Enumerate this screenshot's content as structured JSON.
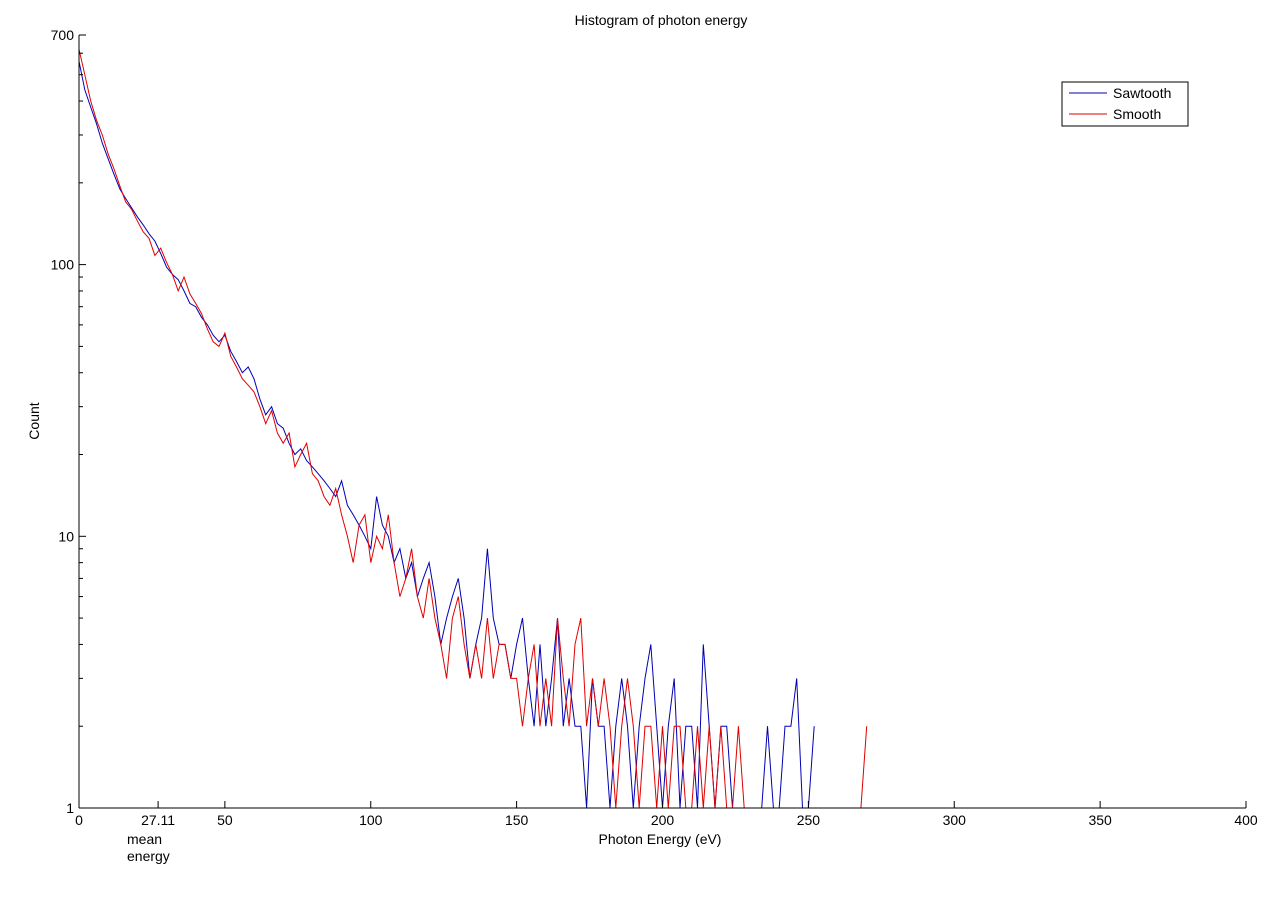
{
  "chart_data": {
    "type": "line",
    "title": "Histogram of photon energy",
    "xlabel": "Photon Energy (eV)",
    "ylabel": "Count",
    "xlim": [
      0,
      400
    ],
    "ylim": [
      1,
      700
    ],
    "yscale": "log",
    "grid": false,
    "legend_position": "top-right",
    "x_ticks": [
      0,
      50,
      100,
      150,
      200,
      250,
      300,
      350,
      400
    ],
    "x_tick_labels": [
      "0",
      "50",
      "100",
      "150",
      "200",
      "250",
      "300",
      "350",
      "400"
    ],
    "y_ticks": [
      1,
      10,
      100,
      700
    ],
    "y_tick_labels": [
      "1",
      "10",
      "100",
      "700"
    ],
    "annotations": [
      {
        "label": "27.11",
        "x": 27.11,
        "caption": [
          "mean",
          "energy"
        ]
      }
    ],
    "series": [
      {
        "name": "Sawtooth",
        "color": "#0000b4",
        "x": [
          0,
          2,
          4,
          6,
          8,
          10,
          12,
          14,
          16,
          18,
          20,
          22,
          24,
          26,
          28,
          30,
          32,
          34,
          36,
          38,
          40,
          42,
          44,
          46,
          48,
          50,
          52,
          54,
          56,
          58,
          60,
          62,
          64,
          66,
          68,
          70,
          72,
          74,
          76,
          78,
          80,
          82,
          84,
          86,
          88,
          90,
          92,
          94,
          96,
          98,
          100,
          102,
          104,
          106,
          108,
          110,
          112,
          114,
          116,
          118,
          120,
          122,
          124,
          126,
          128,
          130,
          132,
          134,
          136,
          138,
          140,
          142,
          144,
          146,
          148,
          150,
          152,
          154,
          156,
          158,
          160,
          162,
          164,
          166,
          168,
          170,
          172,
          174,
          176,
          178,
          180,
          182,
          184,
          186,
          188,
          190,
          192,
          194,
          196,
          198,
          200,
          202,
          204,
          206,
          208,
          210,
          212,
          214,
          216,
          218,
          220,
          222,
          224,
          226,
          228,
          230,
          232,
          234,
          236,
          238,
          240,
          242,
          244,
          246,
          248,
          250,
          252
        ],
        "values": [
          560,
          440,
          380,
          330,
          280,
          245,
          215,
          190,
          175,
          162,
          150,
          140,
          130,
          122,
          110,
          98,
          92,
          88,
          80,
          72,
          70,
          64,
          60,
          55,
          52,
          55,
          48,
          44,
          40,
          42,
          38,
          32,
          28,
          30,
          26,
          25,
          22,
          20,
          21,
          19,
          18,
          17,
          16,
          15,
          14,
          16,
          13,
          12,
          11,
          10,
          9,
          14,
          11,
          10,
          8,
          9,
          7,
          8,
          6,
          7,
          8,
          6,
          4,
          5,
          6,
          7,
          5,
          3,
          4,
          5,
          9,
          5,
          4,
          4,
          3,
          4,
          5,
          3,
          2,
          4,
          2,
          3,
          5,
          2,
          3,
          2,
          2,
          1,
          3,
          2,
          2,
          1,
          2,
          3,
          2,
          1,
          2,
          3,
          4,
          2,
          1,
          2,
          3,
          1,
          2,
          2,
          1,
          4,
          2,
          1,
          2,
          2,
          1,
          1,
          1,
          1,
          1,
          1,
          2,
          1,
          1,
          2,
          2,
          3,
          1,
          1,
          2
        ]
      },
      {
        "name": "Smooth",
        "color": "#e00000",
        "x": [
          0,
          2,
          4,
          6,
          8,
          10,
          12,
          14,
          16,
          18,
          20,
          22,
          24,
          26,
          28,
          30,
          32,
          34,
          36,
          38,
          40,
          42,
          44,
          46,
          48,
          50,
          52,
          54,
          56,
          58,
          60,
          62,
          64,
          66,
          68,
          70,
          72,
          74,
          76,
          78,
          80,
          82,
          84,
          86,
          88,
          90,
          92,
          94,
          96,
          98,
          100,
          102,
          104,
          106,
          108,
          110,
          112,
          114,
          116,
          118,
          120,
          122,
          124,
          126,
          128,
          130,
          132,
          134,
          136,
          138,
          140,
          142,
          144,
          146,
          148,
          150,
          152,
          154,
          156,
          158,
          160,
          162,
          164,
          166,
          168,
          170,
          172,
          174,
          176,
          178,
          180,
          182,
          184,
          186,
          188,
          190,
          192,
          194,
          196,
          198,
          200,
          202,
          204,
          206,
          208,
          210,
          212,
          214,
          216,
          218,
          220,
          222,
          224,
          226,
          228,
          230,
          232,
          234,
          236,
          238,
          240,
          242,
          244,
          246,
          248,
          250,
          252,
          254,
          256,
          258,
          260,
          262,
          264,
          266,
          268,
          270
        ],
        "values": [
          620,
          500,
          400,
          340,
          300,
          255,
          225,
          195,
          170,
          160,
          145,
          132,
          125,
          108,
          115,
          102,
          92,
          80,
          90,
          78,
          72,
          66,
          58,
          52,
          50,
          56,
          46,
          42,
          38,
          36,
          34,
          30,
          26,
          29,
          24,
          22,
          24,
          18,
          20,
          22,
          17,
          16,
          14,
          13,
          15,
          12,
          10,
          8,
          11,
          12,
          8,
          10,
          9,
          12,
          8,
          6,
          7,
          9,
          6,
          5,
          7,
          5,
          4,
          3,
          5,
          6,
          4,
          3,
          4,
          3,
          5,
          3,
          4,
          4,
          3,
          3,
          2,
          3,
          4,
          2,
          3,
          2,
          5,
          3,
          2,
          4,
          5,
          2,
          3,
          2,
          3,
          2,
          1,
          2,
          3,
          2,
          1,
          2,
          2,
          1,
          2,
          1,
          2,
          2,
          1,
          1,
          2,
          1,
          2,
          1,
          2,
          1,
          1,
          2,
          1,
          1,
          1,
          1,
          1,
          1,
          1,
          1,
          1,
          1,
          1,
          1,
          1,
          1,
          1,
          1,
          1,
          1,
          1,
          1,
          1,
          2
        ]
      }
    ]
  }
}
